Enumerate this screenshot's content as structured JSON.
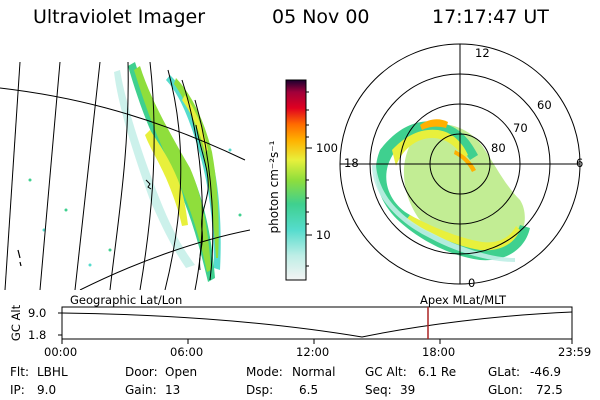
{
  "header": {
    "instrument": "Ultraviolet Imager",
    "date": "05 Nov 00",
    "time": "17:17:47 UT"
  },
  "colorbar": {
    "label": "photon cm⁻²s⁻¹",
    "ticks": [
      "100",
      "10"
    ]
  },
  "polar_plot": {
    "mlt_labels": [
      "12",
      "18",
      "6",
      "0"
    ],
    "lat_labels": [
      "60",
      "70",
      "80"
    ]
  },
  "panels": {
    "left_title": "Geographic Lat/Lon",
    "right_title": "Apex MLat/MLT"
  },
  "timeline": {
    "ylabel": "GC Alt",
    "y_ticks": [
      "9.0",
      "1.8"
    ],
    "x_ticks": [
      "00:00",
      "06:00",
      "12:00",
      "18:00",
      "23:59"
    ],
    "current_time_marker": "17:17"
  },
  "info": {
    "flt_label": "Flt:",
    "flt_value": "LBHL",
    "ip_label": "IP:",
    "ip_value": "9.0",
    "door_label": "Door:",
    "door_value": "Open",
    "gain_label": "Gain:",
    "gain_value": "13",
    "mode_label": "Mode:",
    "mode_value": "Normal",
    "dsp_label": "Dsp:",
    "dsp_value": "6.5",
    "gcalt_label": "GC Alt:",
    "gcalt_value": "6.1 Re",
    "seq_label": "Seq:",
    "seq_value": "39",
    "glat_label": "GLat:",
    "glat_value": "-46.9",
    "glon_label": "GLon:",
    "glon_value": "72.5"
  },
  "colors": {
    "scale": [
      "#f4f4f4",
      "#7ee6d6",
      "#3fd08f",
      "#8fde3c",
      "#e8f03c",
      "#ffb000",
      "#ff6a00",
      "#e00020",
      "#a0003a",
      "#300050"
    ],
    "marker": "#aa2222"
  }
}
